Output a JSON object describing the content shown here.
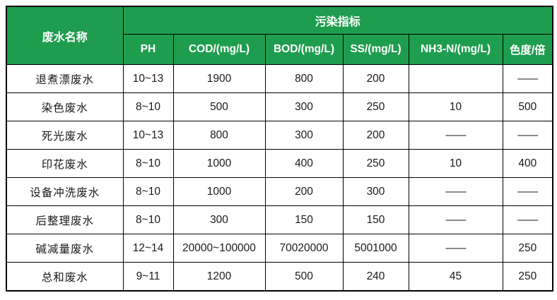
{
  "table": {
    "header": {
      "name_column_label": "废水名称",
      "group_label": "污染指标",
      "columns": [
        "PH",
        "COD/(mg/L)",
        "BOD/(mg/L)",
        "SS/(mg/L)",
        "NH3-N/(mg/L)",
        "色度/倍"
      ]
    },
    "rows": [
      {
        "name": "退煮漂废水",
        "values": [
          "10~13",
          "1900",
          "800",
          "200",
          "",
          "——"
        ]
      },
      {
        "name": "染色废水",
        "values": [
          "8~10",
          "500",
          "300",
          "250",
          "10",
          "500"
        ]
      },
      {
        "name": "死光废水",
        "values": [
          "10~13",
          "800",
          "300",
          "200",
          "——",
          "——"
        ]
      },
      {
        "name": "印花废水",
        "values": [
          "8~10",
          "1000",
          "400",
          "250",
          "10",
          "400"
        ]
      },
      {
        "name": "设备冲洗废水",
        "values": [
          "8~10",
          "1000",
          "200",
          "300",
          "——",
          "——"
        ]
      },
      {
        "name": "后整理废水",
        "values": [
          "8~10",
          "300",
          "150",
          "150",
          "——",
          "——"
        ]
      },
      {
        "name": "碱减量废水",
        "values": [
          "12~14",
          "20000~100000",
          "70020000",
          "5001000",
          "——",
          "250"
        ]
      },
      {
        "name": "总和废水",
        "values": [
          "9~11",
          "1200",
          "500",
          "240",
          "45",
          "250"
        ]
      }
    ],
    "colors": {
      "header_background": "#1f9d4e",
      "header_text": "#ffffff",
      "grid_border": "#000000",
      "body_text": "#1a1a1a",
      "page_background": "#ffffff"
    }
  }
}
